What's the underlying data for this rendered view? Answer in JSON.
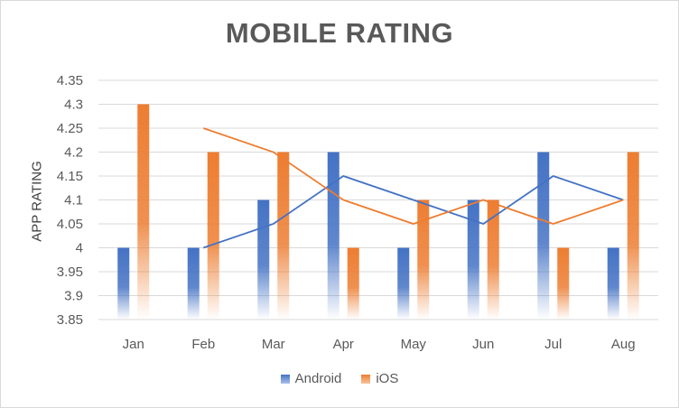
{
  "chart_data": {
    "type": "bar",
    "title": "MOBILE RATING",
    "xlabel": "",
    "ylabel": "APP RATING",
    "categories": [
      "Jan",
      "Feb",
      "Mar",
      "Apr",
      "May",
      "Jun",
      "Jul",
      "Aug"
    ],
    "ylim": [
      3.85,
      4.35
    ],
    "yticks": [
      "3.85",
      "3.9",
      "3.95",
      "4",
      "4.05",
      "4.1",
      "4.15",
      "4.2",
      "4.25",
      "4.3",
      "4.35"
    ],
    "grid": true,
    "legend_position": "bottom",
    "series": [
      {
        "name": "Android",
        "color": "#4472c4",
        "values": [
          4.0,
          4.0,
          4.1,
          4.2,
          4.0,
          4.1,
          4.2,
          4.0
        ]
      },
      {
        "name": "iOS",
        "color": "#ed7d31",
        "values": [
          4.3,
          4.2,
          4.2,
          4.0,
          4.1,
          4.1,
          4.0,
          4.2
        ]
      }
    ],
    "trendlines": [
      {
        "series": "Android",
        "type": "2-period moving average",
        "color": "#4472c4"
      },
      {
        "series": "iOS",
        "type": "2-period moving average",
        "color": "#ed7d31"
      }
    ]
  }
}
